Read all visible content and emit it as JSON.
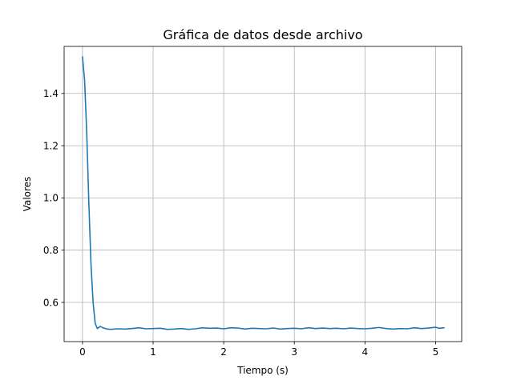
{
  "chart_data": {
    "type": "line",
    "title": "Gráfica de datos desde archivo",
    "xlabel": "Tiempo (s)",
    "ylabel": "Valores",
    "xlim": [
      -0.26,
      5.37
    ],
    "ylim": [
      0.45,
      1.58
    ],
    "xticks": [
      0,
      1,
      2,
      3,
      4,
      5
    ],
    "xtick_labels": [
      "0",
      "1",
      "2",
      "3",
      "4",
      "5"
    ],
    "yticks": [
      0.6,
      0.8,
      1.0,
      1.2,
      1.4
    ],
    "ytick_labels": [
      "0.6",
      "0.8",
      "1.0",
      "1.2",
      "1.4"
    ],
    "grid": true,
    "legend": "none",
    "series": [
      {
        "color": "#1f77b4",
        "x": [
          0,
          0.03,
          0.06,
          0.09,
          0.12,
          0.15,
          0.18,
          0.21,
          0.25,
          0.3,
          0.35,
          0.4,
          0.5,
          0.6,
          0.7,
          0.8,
          0.9,
          1.0,
          1.1,
          1.2,
          1.3,
          1.4,
          1.5,
          1.6,
          1.7,
          1.8,
          1.9,
          2.0,
          2.1,
          2.2,
          2.3,
          2.4,
          2.5,
          2.6,
          2.7,
          2.8,
          2.9,
          3.0,
          3.1,
          3.2,
          3.3,
          3.4,
          3.5,
          3.6,
          3.7,
          3.8,
          3.9,
          4.0,
          4.1,
          4.2,
          4.3,
          4.4,
          4.5,
          4.6,
          4.7,
          4.8,
          4.9,
          5.0,
          5.05,
          5.12
        ],
        "y": [
          1.54,
          1.45,
          1.25,
          0.98,
          0.75,
          0.6,
          0.52,
          0.5,
          0.508,
          0.502,
          0.498,
          0.497,
          0.499,
          0.498,
          0.5,
          0.503,
          0.499,
          0.5,
          0.501,
          0.497,
          0.498,
          0.5,
          0.497,
          0.499,
          0.503,
          0.501,
          0.502,
          0.499,
          0.503,
          0.502,
          0.498,
          0.501,
          0.5,
          0.499,
          0.502,
          0.498,
          0.5,
          0.501,
          0.499,
          0.503,
          0.5,
          0.502,
          0.5,
          0.501,
          0.499,
          0.502,
          0.5,
          0.499,
          0.501,
          0.504,
          0.5,
          0.498,
          0.5,
          0.499,
          0.503,
          0.5,
          0.502,
          0.505,
          0.501,
          0.503
        ]
      }
    ]
  }
}
